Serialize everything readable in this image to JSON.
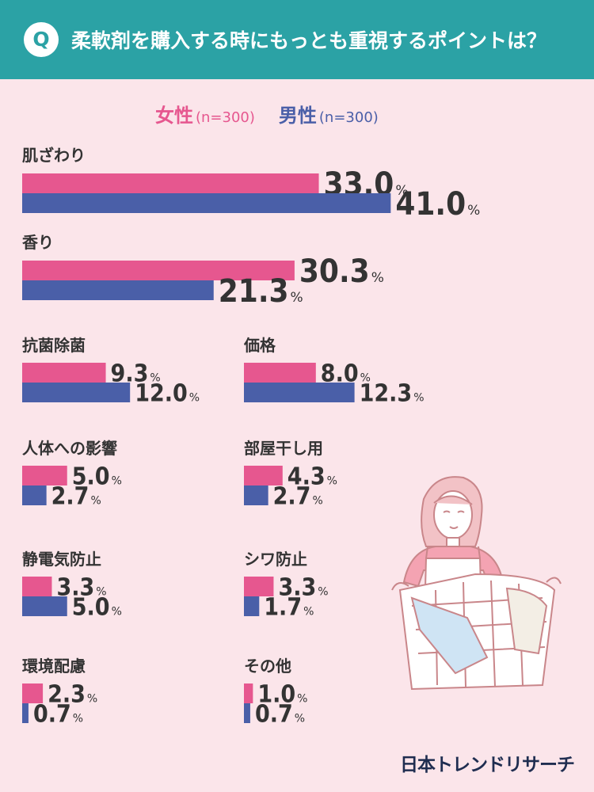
{
  "title": "柔軟剤を購入する時にもっとも重視するポイントは？",
  "q_badge": "Q",
  "legend": {
    "female": "女性",
    "female_n": "(n=300)",
    "male": "男性",
    "male_n": "(n=300)"
  },
  "brand": "日本トレンドリサーチ",
  "colors": {
    "female": "#e6578f",
    "male": "#4a5fa8",
    "header": "#2ba2a5",
    "background": "#fbe5ea"
  },
  "chart_data": {
    "type": "bar",
    "orientation": "horizontal",
    "unit": "%",
    "series": [
      {
        "name": "女性",
        "values": [
          33.0,
          30.3,
          9.3,
          8.0,
          5.0,
          4.3,
          3.3,
          3.3,
          2.3,
          1.0
        ]
      },
      {
        "name": "男性",
        "values": [
          41.0,
          21.3,
          12.0,
          12.3,
          2.7,
          2.7,
          5.0,
          1.7,
          0.7,
          0.7
        ]
      }
    ],
    "categories": [
      "肌ざわり",
      "香り",
      "抗菌除菌",
      "価格",
      "人体への影響",
      "部屋干し用",
      "静電気防止",
      "シワ防止",
      "環境配慮",
      "その他"
    ],
    "labels": {
      "female": [
        "33.0",
        "30.3",
        "9.3",
        "8.0",
        "5.0",
        "4.3",
        "3.3",
        "3.3",
        "2.3",
        "1.0"
      ],
      "male": [
        "41.0",
        "21.3",
        "12.0",
        "12.3",
        "2.7",
        "2.7",
        "5.0",
        "1.7",
        "0.7",
        "0.7"
      ]
    }
  }
}
